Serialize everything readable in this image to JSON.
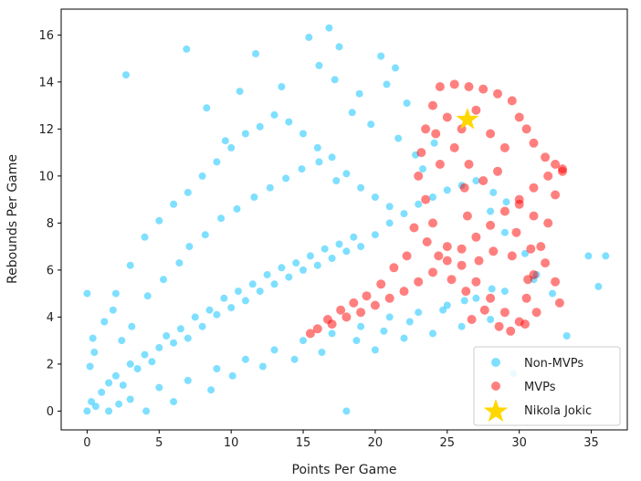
{
  "chart_data": {
    "type": "scatter",
    "title": "",
    "xlabel": "Points Per Game",
    "ylabel": "Rebounds Per Game",
    "xlim": [
      -1.8,
      37.5
    ],
    "ylim": [
      -0.8,
      17.1
    ],
    "xticks": [
      0,
      5,
      10,
      15,
      20,
      25,
      30,
      35
    ],
    "yticks": [
      0,
      2,
      4,
      6,
      8,
      10,
      12,
      14,
      16
    ],
    "grid": false,
    "legend_position": "lower-right",
    "series": [
      {
        "name": "Non-MVPs",
        "color": "#00bfff",
        "marker": "circle",
        "opacity": 0.5,
        "points": [
          [
            0,
            0
          ],
          [
            0.3,
            0.4
          ],
          [
            0.6,
            0.2
          ],
          [
            1,
            0.8
          ],
          [
            1.5,
            1.2
          ],
          [
            2,
            1.5
          ],
          [
            2.5,
            1.1
          ],
          [
            3,
            2
          ],
          [
            3.5,
            1.8
          ],
          [
            4,
            2.4
          ],
          [
            4.5,
            2.1
          ],
          [
            5,
            2.7
          ],
          [
            5.5,
            3.2
          ],
          [
            6,
            2.9
          ],
          [
            6.5,
            3.5
          ],
          [
            7,
            3.1
          ],
          [
            7.5,
            4
          ],
          [
            8,
            3.6
          ],
          [
            8.5,
            4.3
          ],
          [
            9,
            4.1
          ],
          [
            9.5,
            4.8
          ],
          [
            10,
            4.4
          ],
          [
            10.5,
            5.1
          ],
          [
            11,
            4.7
          ],
          [
            11.5,
            5.4
          ],
          [
            12,
            5.1
          ],
          [
            12.5,
            5.8
          ],
          [
            13,
            5.4
          ],
          [
            13.5,
            6.1
          ],
          [
            14,
            5.7
          ],
          [
            14.5,
            6.3
          ],
          [
            15,
            6
          ],
          [
            15.5,
            6.6
          ],
          [
            16,
            6.2
          ],
          [
            16.5,
            6.9
          ],
          [
            17,
            6.5
          ],
          [
            17.5,
            7.1
          ],
          [
            18,
            6.8
          ],
          [
            18.5,
            7.4
          ],
          [
            19,
            7
          ],
          [
            20,
            7.5
          ],
          [
            21,
            8
          ],
          [
            22,
            8.4
          ],
          [
            23,
            8.8
          ],
          [
            24,
            9.1
          ],
          [
            25,
            9.4
          ],
          [
            26,
            9.6
          ],
          [
            27,
            9.8
          ],
          [
            28,
            8.5
          ],
          [
            29,
            7.6
          ],
          [
            2,
            5
          ],
          [
            3,
            6.2
          ],
          [
            4,
            7.4
          ],
          [
            5,
            8.1
          ],
          [
            6,
            8.8
          ],
          [
            7,
            9.3
          ],
          [
            8,
            10
          ],
          [
            9,
            10.6
          ],
          [
            10,
            11.2
          ],
          [
            11,
            11.8
          ],
          [
            12,
            12.1
          ],
          [
            13,
            12.6
          ],
          [
            14,
            12.3
          ],
          [
            15,
            11.8
          ],
          [
            16,
            11.2
          ],
          [
            17,
            10.8
          ],
          [
            18,
            10.1
          ],
          [
            19,
            9.5
          ],
          [
            20,
            9.1
          ],
          [
            21,
            8.7
          ],
          [
            3,
            0.5
          ],
          [
            5,
            1
          ],
          [
            7,
            1.3
          ],
          [
            9,
            1.8
          ],
          [
            11,
            2.2
          ],
          [
            13,
            2.6
          ],
          [
            15,
            3
          ],
          [
            17,
            3.3
          ],
          [
            19,
            3.6
          ],
          [
            21,
            4
          ],
          [
            23,
            4.2
          ],
          [
            25,
            4.5
          ],
          [
            27,
            4.8
          ],
          [
            29,
            5.1
          ],
          [
            31,
            5.6
          ],
          [
            20,
            2.6
          ],
          [
            22,
            3.1
          ],
          [
            24,
            3.3
          ],
          [
            26,
            3.6
          ],
          [
            28,
            3.9
          ],
          [
            0.5,
            2.5
          ],
          [
            0.4,
            3.1
          ],
          [
            0.2,
            1.9
          ],
          [
            1.2,
            3.8
          ],
          [
            1.8,
            4.3
          ],
          [
            2.4,
            3
          ],
          [
            3.1,
            3.6
          ],
          [
            4.2,
            4.9
          ],
          [
            5.3,
            5.6
          ],
          [
            6.4,
            6.3
          ],
          [
            7.1,
            7
          ],
          [
            8.2,
            7.5
          ],
          [
            9.3,
            8.2
          ],
          [
            10.4,
            8.6
          ],
          [
            11.6,
            9.1
          ],
          [
            12.7,
            9.5
          ],
          [
            13.8,
            9.9
          ],
          [
            14.9,
            10.3
          ],
          [
            16.1,
            10.6
          ],
          [
            17.3,
            9.8
          ],
          [
            0,
            5
          ],
          [
            2.7,
            14.3
          ],
          [
            6.9,
            15.4
          ],
          [
            11.7,
            15.2
          ],
          [
            15.4,
            15.9
          ],
          [
            16.8,
            16.3
          ],
          [
            17.5,
            15.5
          ],
          [
            16.1,
            14.7
          ],
          [
            13.5,
            13.8
          ],
          [
            10.6,
            13.6
          ],
          [
            8.3,
            12.9
          ],
          [
            9.6,
            11.5
          ],
          [
            20.4,
            15.1
          ],
          [
            21.4,
            14.6
          ],
          [
            22.2,
            13.1
          ],
          [
            20.8,
            13.9
          ],
          [
            18.9,
            13.5
          ],
          [
            17.2,
            14.1
          ],
          [
            18.4,
            12.7
          ],
          [
            19.7,
            12.2
          ],
          [
            21.6,
            11.6
          ],
          [
            22.8,
            10.9
          ],
          [
            23.3,
            10.3
          ],
          [
            24.1,
            11.4
          ],
          [
            28.2,
            9.3
          ],
          [
            29.1,
            8.9
          ],
          [
            30.4,
            6.7
          ],
          [
            31.2,
            5.8
          ],
          [
            32.3,
            5
          ],
          [
            34.8,
            6.6
          ],
          [
            35.5,
            5.3
          ],
          [
            36,
            6.6
          ],
          [
            33.3,
            3.2
          ],
          [
            29.6,
            1.6
          ],
          [
            18,
            0
          ],
          [
            4.1,
            0
          ],
          [
            1.5,
            0
          ],
          [
            2.2,
            0.3
          ],
          [
            6,
            0.4
          ],
          [
            8.6,
            0.9
          ],
          [
            10.1,
            1.5
          ],
          [
            12.2,
            1.9
          ],
          [
            14.4,
            2.2
          ],
          [
            16.3,
            2.5
          ],
          [
            18.7,
            3
          ],
          [
            20.6,
            3.4
          ],
          [
            22.4,
            3.8
          ],
          [
            24.7,
            4.3
          ],
          [
            26.2,
            4.7
          ],
          [
            28.1,
            5.2
          ]
        ]
      },
      {
        "name": "MVPs",
        "color": "#ff0000",
        "marker": "circle",
        "opacity": 0.5,
        "points": [
          [
            15.5,
            3.3
          ],
          [
            16,
            3.5
          ],
          [
            17,
            3.7
          ],
          [
            18,
            4
          ],
          [
            19,
            4.2
          ],
          [
            20,
            4.5
          ],
          [
            21,
            4.8
          ],
          [
            22,
            5.1
          ],
          [
            23,
            5.5
          ],
          [
            24,
            5.9
          ],
          [
            25,
            6.4
          ],
          [
            26,
            6.9
          ],
          [
            27,
            7.4
          ],
          [
            28,
            7.9
          ],
          [
            29,
            8.5
          ],
          [
            30,
            9
          ],
          [
            31,
            9.5
          ],
          [
            32,
            10
          ],
          [
            33,
            10.3
          ],
          [
            32.5,
            9.2
          ],
          [
            32,
            8
          ],
          [
            31.5,
            7
          ],
          [
            31,
            5.8
          ],
          [
            30.5,
            4.8
          ],
          [
            30,
            3.8
          ],
          [
            29,
            4.2
          ],
          [
            28,
            4.8
          ],
          [
            27,
            5.5
          ],
          [
            26,
            6.2
          ],
          [
            25,
            7
          ],
          [
            24,
            8
          ],
          [
            23.5,
            9
          ],
          [
            23,
            10
          ],
          [
            23.2,
            11
          ],
          [
            23.5,
            12
          ],
          [
            24,
            13
          ],
          [
            24.5,
            13.8
          ],
          [
            25.5,
            13.9
          ],
          [
            26.5,
            13.8
          ],
          [
            27.5,
            13.7
          ],
          [
            28.5,
            13.5
          ],
          [
            29.5,
            13.2
          ],
          [
            30,
            12.5
          ],
          [
            30.5,
            12
          ],
          [
            31,
            11.4
          ],
          [
            31.8,
            10.8
          ],
          [
            32.5,
            10.5
          ],
          [
            33,
            10.2
          ],
          [
            26,
            12
          ],
          [
            27,
            12.8
          ],
          [
            28,
            11.8
          ],
          [
            29,
            11.2
          ],
          [
            26.5,
            10.5
          ],
          [
            27.5,
            9.8
          ],
          [
            25.5,
            11.2
          ],
          [
            24.5,
            10.5
          ],
          [
            25,
            12.5
          ],
          [
            24.2,
            11.8
          ],
          [
            26.2,
            9.5
          ],
          [
            28.5,
            10.2
          ],
          [
            30,
            8.8
          ],
          [
            31,
            8.3
          ],
          [
            29.5,
            6.6
          ],
          [
            30.8,
            6.9
          ],
          [
            31.8,
            6.3
          ],
          [
            32.5,
            5.5
          ],
          [
            32.8,
            4.6
          ],
          [
            31.2,
            4.2
          ],
          [
            30.6,
            5.6
          ],
          [
            29.8,
            7.6
          ],
          [
            28.2,
            6.8
          ],
          [
            27.2,
            6.4
          ],
          [
            26.3,
            5.1
          ],
          [
            25.3,
            5.6
          ],
          [
            24.4,
            6.6
          ],
          [
            23.6,
            7.2
          ],
          [
            22.7,
            7.8
          ],
          [
            22.2,
            6.6
          ],
          [
            21.3,
            6.1
          ],
          [
            20.4,
            5.4
          ],
          [
            19.4,
            4.9
          ],
          [
            18.5,
            4.6
          ],
          [
            17.6,
            4.3
          ],
          [
            16.7,
            3.9
          ],
          [
            26.7,
            3.9
          ],
          [
            27.6,
            4.3
          ],
          [
            28.6,
            3.6
          ],
          [
            29.4,
            3.4
          ],
          [
            30.4,
            3.7
          ],
          [
            26.4,
            8.3
          ]
        ]
      },
      {
        "name": "Nikola Jokic",
        "color": "#ffd700",
        "marker": "star",
        "points": [
          [
            26.4,
            12.4
          ]
        ]
      }
    ]
  }
}
